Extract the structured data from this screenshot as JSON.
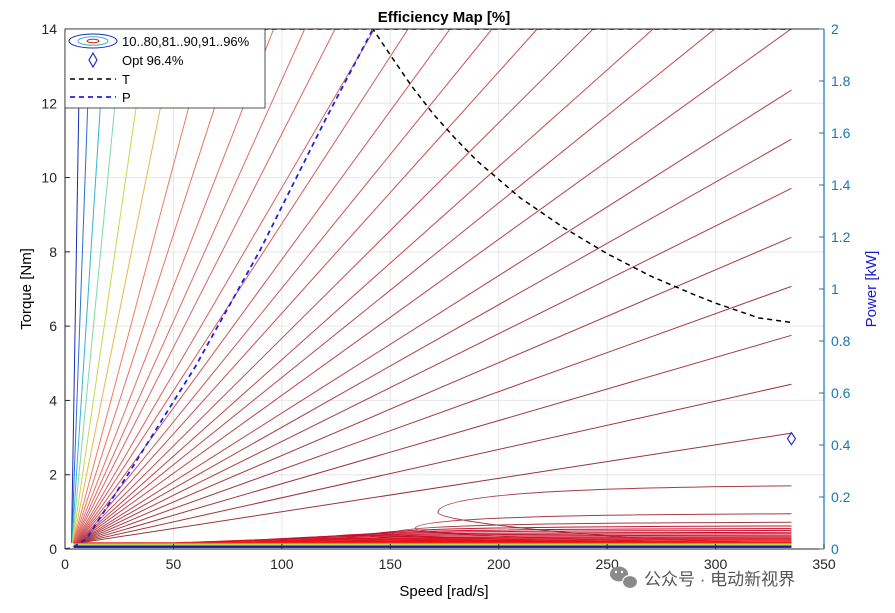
{
  "chart_data": {
    "type": "contour",
    "title": "Efficiency Map [%]",
    "xlabel": "Speed [rad/s]",
    "ylabel": "Torque [Nm]",
    "ylabel_right": "Power [kW]",
    "xlim": [
      0,
      350
    ],
    "ylim": [
      0,
      14
    ],
    "ylim_right": [
      0,
      2
    ],
    "xticks": [
      "0",
      "50",
      "100",
      "150",
      "200",
      "250",
      "300",
      "350"
    ],
    "yticks": [
      "0",
      "2",
      "4",
      "6",
      "8",
      "10",
      "12",
      "14"
    ],
    "yticks_right": [
      "0",
      "0.2",
      "0.4",
      "0.6",
      "0.8",
      "1",
      "1.2",
      "1.4",
      "1.6",
      "1.8",
      "2"
    ],
    "grid": true,
    "legend_position": "top-left",
    "legend": {
      "contour_label": "10..80,81..90,91..96%",
      "opt_label": "Opt 96.4%",
      "t_label": "T",
      "p_label": "P"
    },
    "optimum": {
      "speed": 335,
      "torque": 2.97
    },
    "max_torque_curve": {
      "speed": [
        0,
        142,
        150,
        160,
        170,
        180,
        190,
        200,
        210,
        220,
        230,
        240,
        250,
        260,
        270,
        280,
        290,
        300,
        310,
        320,
        335
      ],
      "torque": [
        14,
        14,
        13.3,
        12.45,
        11.7,
        11.05,
        10.45,
        9.95,
        9.45,
        9.05,
        8.65,
        8.3,
        7.95,
        7.65,
        7.35,
        7.1,
        6.85,
        6.62,
        6.42,
        6.22,
        6.1
      ]
    },
    "max_power_curve": {
      "speed": [
        0,
        3,
        10,
        30,
        60,
        90,
        120,
        142,
        150,
        200,
        250,
        300,
        335
      ],
      "power_kw": [
        0,
        0.003,
        0.04,
        0.3,
        0.7,
        1.15,
        1.65,
        2,
        2,
        2,
        2,
        2,
        2
      ]
    },
    "contour_levels": {
      "ray_slopes_nm_per_rad_s": [
        3.5,
        1.6,
        0.9,
        0.6,
        0.4,
        0.29,
        0.22,
        0.18,
        0.15,
        0.13,
        0.115,
        0.1,
        0.09,
        0.08,
        0.072,
        0.065,
        0.058,
        0.052,
        0.047,
        0.042,
        0.037,
        0.033,
        0.029,
        0.025,
        0.021,
        0.017,
        0.013,
        0.009
      ],
      "closed_loop_torques": [
        1.7,
        0.95,
        0.72,
        0.62,
        0.55,
        0.5,
        0.45,
        0.41,
        0.37,
        0.33,
        0.3,
        0.27,
        0.24,
        0.21,
        0.18,
        0.15,
        0.12
      ],
      "ray_colors": [
        "#1a2cb8",
        "#2a6fd6",
        "#39b0d8",
        "#7fd8a8",
        "#c8d84a",
        "#e8b84a",
        "#f07c5c",
        "#e8735f",
        "#e46e62",
        "#e06963",
        "#dc6462",
        "#d85f60",
        "#d45a5d",
        "#d0565a",
        "#cc5257",
        "#c84e55",
        "#c44b53",
        "#c04850",
        "#bc454e",
        "#b8434c",
        "#b4414a",
        "#b03f48",
        "#ac3d46",
        "#a83b44",
        "#a43942",
        "#a03740",
        "#9c353e",
        "#98333c"
      ]
    }
  },
  "watermark": "公众号 · 电动新视界"
}
